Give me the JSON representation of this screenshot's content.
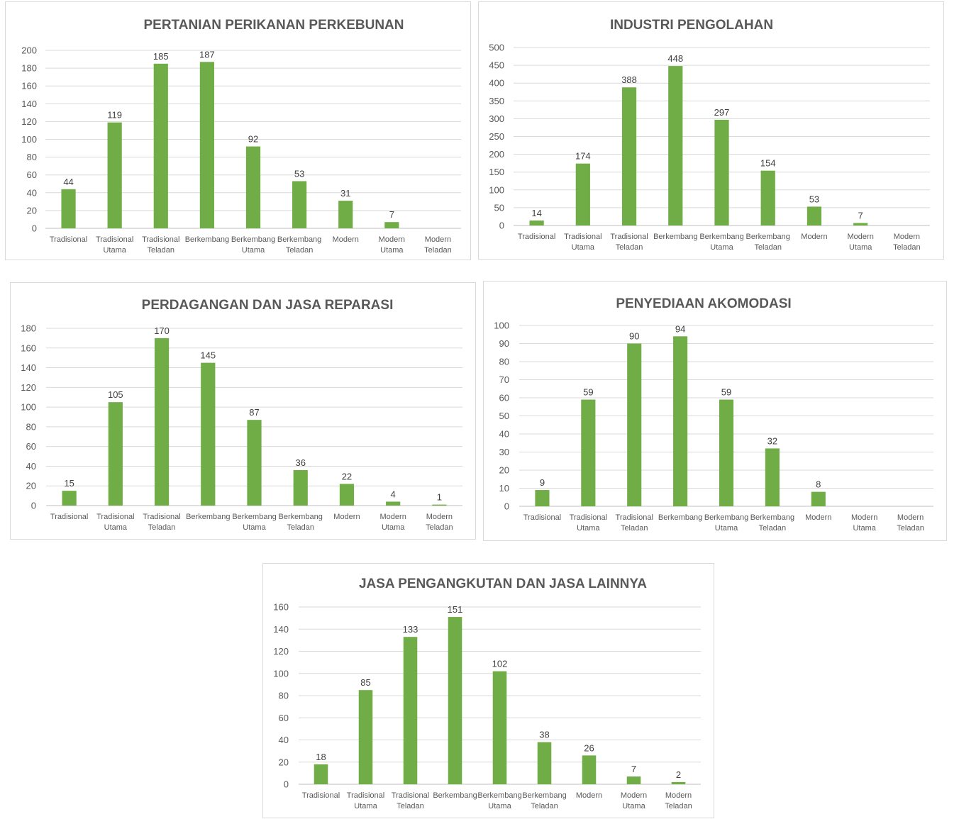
{
  "bar_color": "#70ad47",
  "chart_data": [
    {
      "type": "bar",
      "title": "PERTANIAN PERIKANAN PERKEBUNAN",
      "categories": [
        "Tradisional",
        "Tradisional Utama",
        "Tradisional Teladan",
        "Berkembang",
        "Berkembang Utama",
        "Berkembang Teladan",
        "Modern",
        "Modern Utama",
        "Modern Teladan"
      ],
      "values": [
        44,
        119,
        185,
        187,
        92,
        53,
        31,
        7,
        null
      ],
      "ylim": [
        0,
        200
      ],
      "yticks": [
        0,
        20,
        40,
        60,
        80,
        100,
        120,
        140,
        160,
        180,
        200
      ],
      "grid": true,
      "legend": "none"
    },
    {
      "type": "bar",
      "title": "INDUSTRI PENGOLAHAN",
      "categories": [
        "Tradisional",
        "Tradisional Utama",
        "Tradisional Teladan",
        "Berkembang",
        "Berkembang Utama",
        "Berkembang Teladan",
        "Modern",
        "Modern Utama",
        "Modern Teladan"
      ],
      "values": [
        14,
        174,
        388,
        448,
        297,
        154,
        53,
        7,
        null
      ],
      "ylim": [
        0,
        500
      ],
      "yticks": [
        0,
        50,
        100,
        150,
        200,
        250,
        300,
        350,
        400,
        450,
        500
      ],
      "grid": true,
      "legend": "none"
    },
    {
      "type": "bar",
      "title": "PERDAGANGAN  DAN JASA REPARASI",
      "categories": [
        "Tradisional",
        "Tradisional Utama",
        "Tradisional Teladan",
        "Berkembang",
        "Berkembang Utama",
        "Berkembang Teladan",
        "Modern",
        "Modern Utama",
        "Modern Teladan"
      ],
      "values": [
        15,
        105,
        170,
        145,
        87,
        36,
        22,
        4,
        1
      ],
      "ylim": [
        0,
        180
      ],
      "yticks": [
        0,
        20,
        40,
        60,
        80,
        100,
        120,
        140,
        160,
        180
      ],
      "grid": true,
      "legend": "none"
    },
    {
      "type": "bar",
      "title": "PENYEDIAAN AKOMODASI",
      "categories": [
        "Tradisional",
        "Tradisional Utama",
        "Tradisional Teladan",
        "Berkembang",
        "Berkembang Utama",
        "Berkembang Teladan",
        "Modern",
        "Modern Utama",
        "Modern Teladan"
      ],
      "values": [
        9,
        59,
        90,
        94,
        59,
        32,
        8,
        null,
        null
      ],
      "ylim": [
        0,
        100
      ],
      "yticks": [
        0,
        10,
        20,
        30,
        40,
        50,
        60,
        70,
        80,
        90,
        100
      ],
      "grid": true,
      "legend": "none"
    },
    {
      "type": "bar",
      "title": "JASA PENGANGKUTAN  DAN JASA LAINNYA",
      "categories": [
        "Tradisional",
        "Tradisional Utama",
        "Tradisional Teladan",
        "Berkembang",
        "Berkembang Utama",
        "Berkembang Teladan",
        "Modern",
        "Modern Utama",
        "Modern Teladan"
      ],
      "values": [
        18,
        85,
        133,
        151,
        102,
        38,
        26,
        7,
        2
      ],
      "ylim": [
        0,
        160
      ],
      "yticks": [
        0,
        20,
        40,
        60,
        80,
        100,
        120,
        140,
        160
      ],
      "grid": true,
      "legend": "none"
    }
  ]
}
